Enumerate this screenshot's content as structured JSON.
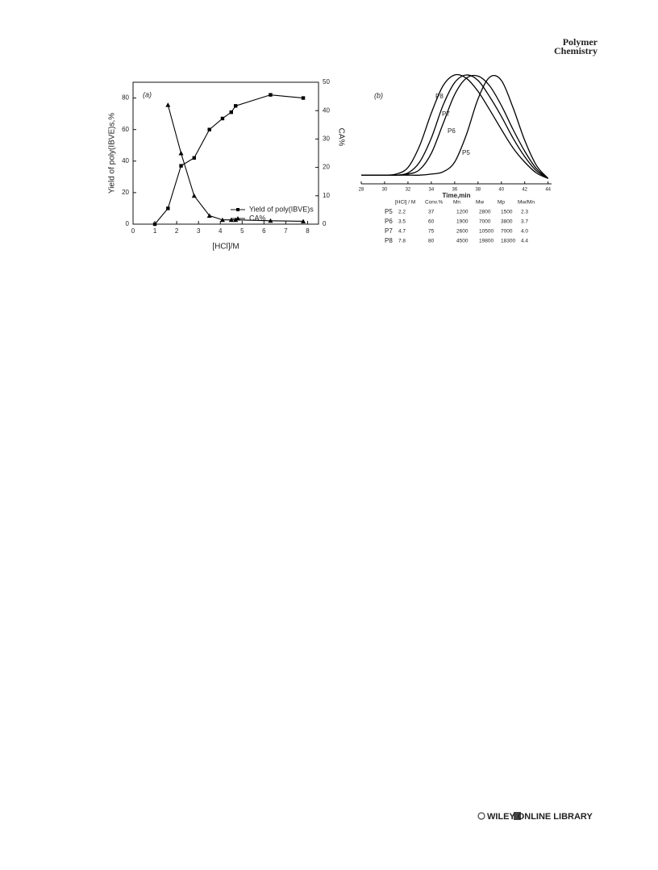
{
  "header": {
    "journal": [
      "Polymer",
      "Chemistry"
    ]
  },
  "chart_data": [
    {
      "type": "scatter",
      "panel": "(a)",
      "xlabel": "[HCl]/M",
      "ylabel": "Yield of poly(IBVE)s,%",
      "y2label": "CA%",
      "xlim": [
        0,
        8.5
      ],
      "ylim": [
        0,
        90
      ],
      "y2lim": [
        0,
        50
      ],
      "xticks": [
        0,
        1,
        2,
        3,
        4,
        5,
        6,
        7,
        8
      ],
      "yticks": [
        0,
        20,
        40,
        60,
        80
      ],
      "y2ticks": [
        0,
        10,
        20,
        30,
        40,
        50
      ],
      "series": [
        {
          "name": "Yield of poly(IBVE)s",
          "color": "#000000",
          "marker": "square",
          "x": [
            1,
            1.6,
            2.2,
            2.8,
            3.5,
            4.1,
            4.5,
            4.7,
            6.3,
            7.8
          ],
          "values": [
            0,
            10,
            37,
            42,
            60,
            67,
            71,
            75,
            82,
            80
          ]
        },
        {
          "name": "CA%",
          "color": "#000000",
          "marker": "triangle",
          "axis": "y2",
          "x": [
            1.6,
            2.2,
            2.8,
            3.5,
            4.1,
            4.5,
            4.7,
            6.3,
            7.8
          ],
          "values": [
            42,
            25,
            10,
            3,
            1.5,
            1.5,
            1.5,
            1.2,
            1
          ]
        }
      ]
    },
    {
      "type": "line",
      "panel": "(b)",
      "xlabel": "Time,min",
      "xlim": [
        28,
        44.3
      ],
      "ylim": [
        0,
        1
      ],
      "xticks": [
        28,
        30,
        32,
        34,
        36,
        38,
        40,
        42,
        44
      ],
      "x": [
        28,
        29,
        30,
        31,
        32,
        33,
        34,
        35,
        36,
        37,
        38,
        39,
        40,
        41,
        42,
        43,
        44
      ],
      "series": [
        {
          "name": "P8",
          "color": "#000000",
          "values": [
            0.08,
            0.08,
            0.08,
            0.09,
            0.15,
            0.35,
            0.65,
            0.9,
            1.0,
            0.97,
            0.85,
            0.68,
            0.5,
            0.33,
            0.2,
            0.1,
            0.05
          ]
        },
        {
          "name": "P7",
          "color": "#000000",
          "values": [
            0.08,
            0.08,
            0.08,
            0.08,
            0.1,
            0.2,
            0.42,
            0.72,
            0.93,
            1.0,
            0.95,
            0.8,
            0.62,
            0.42,
            0.25,
            0.12,
            0.05
          ]
        },
        {
          "name": "P6",
          "color": "#000000",
          "values": [
            0.08,
            0.08,
            0.08,
            0.08,
            0.09,
            0.13,
            0.28,
            0.55,
            0.82,
            0.97,
            0.99,
            0.9,
            0.72,
            0.5,
            0.3,
            0.14,
            0.05
          ]
        },
        {
          "name": "P5",
          "color": "#000000",
          "values": [
            0.08,
            0.08,
            0.08,
            0.08,
            0.08,
            0.08,
            0.09,
            0.11,
            0.2,
            0.45,
            0.78,
            0.98,
            0.95,
            0.7,
            0.4,
            0.17,
            0.05
          ]
        }
      ]
    }
  ],
  "table": {
    "columns": [
      "[HCl] / M",
      "Conv.%",
      "Mn",
      "Mw",
      "Mp",
      "Mw/Mn"
    ],
    "rows": [
      [
        "P5",
        "2.2",
        "37",
        "1200",
        "2800",
        "1500",
        "2.3"
      ],
      [
        "P6",
        "3.5",
        "60",
        "1900",
        "7000",
        "3800",
        "3.7"
      ],
      [
        "P7",
        "4.7",
        "75",
        "2600",
        "10500",
        "7000",
        "4.0"
      ],
      [
        "P8",
        "7.8",
        "80",
        "4500",
        "19800",
        "18300",
        "4.4"
      ]
    ]
  },
  "footer": {
    "text": "WILEY ONLINE LIBRARY"
  }
}
